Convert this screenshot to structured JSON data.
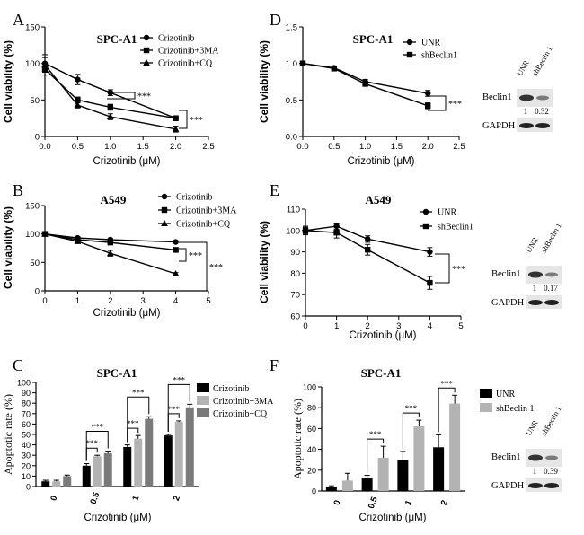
{
  "chart_data": [
    {
      "panel": "A",
      "type": "line",
      "title": "SPC-A1",
      "xlabel": "Crizotinib (μM)",
      "ylabel": "Cell viability (%)",
      "xlim": [
        0,
        2.5
      ],
      "ylim": [
        0,
        150
      ],
      "xticks": [
        "0.0",
        "0.5",
        "1.0",
        "1.5",
        "2.0",
        "2.5"
      ],
      "yticks": [
        "0",
        "50",
        "100",
        "150"
      ],
      "series": [
        {
          "name": "Crizotinib",
          "marker": "circle",
          "x": [
            0,
            0.5,
            1,
            2
          ],
          "values": [
            100,
            78,
            60,
            25
          ],
          "err": [
            12,
            7,
            4,
            3
          ]
        },
        {
          "name": "Crizotinib+3MA",
          "marker": "square",
          "x": [
            0,
            0.5,
            1,
            2
          ],
          "values": [
            92,
            50,
            40,
            25
          ],
          "err": [
            8,
            4,
            4,
            3
          ]
        },
        {
          "name": "Crizotinib+CQ",
          "marker": "triangle",
          "x": [
            0,
            0.5,
            1,
            2
          ],
          "values": [
            98,
            43,
            27,
            10
          ],
          "err": [
            10,
            4,
            4,
            4
          ]
        }
      ],
      "sig": [
        "***",
        "***"
      ]
    },
    {
      "panel": "B",
      "type": "line",
      "title": "A549",
      "xlabel": "Crizotinib (μM)",
      "ylabel": "Cell viability (%)",
      "xlim": [
        0,
        5
      ],
      "ylim": [
        0,
        150
      ],
      "xticks": [
        "0",
        "1",
        "2",
        "3",
        "4",
        "5"
      ],
      "yticks": [
        "0",
        "50",
        "100",
        "150"
      ],
      "series": [
        {
          "name": "Crizotinib",
          "marker": "circle",
          "x": [
            0,
            1,
            2,
            4
          ],
          "values": [
            100,
            93,
            90,
            86
          ],
          "err": [
            2,
            2,
            2,
            2
          ]
        },
        {
          "name": "Crizotinib+3MA",
          "marker": "square",
          "x": [
            0,
            1,
            2,
            4
          ],
          "values": [
            100,
            90,
            85,
            72
          ],
          "err": [
            2,
            2,
            3,
            2
          ]
        },
        {
          "name": "Crizotinib+CQ",
          "marker": "triangle",
          "x": [
            0,
            1,
            2,
            4
          ],
          "values": [
            100,
            87,
            66,
            30
          ],
          "err": [
            2,
            3,
            5,
            2
          ]
        }
      ],
      "sig": [
        "***",
        "***"
      ]
    },
    {
      "panel": "C",
      "type": "bar",
      "title": "SPC-A1",
      "xlabel": "Crizotinib (μM)",
      "ylabel": "Apoptotic rate (%)",
      "ylim": [
        0,
        100
      ],
      "yticks": [
        "0",
        "10",
        "20",
        "30",
        "40",
        "50",
        "60",
        "70",
        "80",
        "90",
        "100"
      ],
      "categories": [
        "0",
        "0.5",
        "1",
        "2"
      ],
      "series": [
        {
          "name": "Crizotinib",
          "color": "#000000",
          "values": [
            5,
            20,
            38,
            49
          ],
          "err": [
            1,
            2,
            2,
            1
          ]
        },
        {
          "name": "Crizotinib+3MA",
          "color": "#b3b3b3",
          "values": [
            5,
            29,
            46,
            62
          ],
          "err": [
            1,
            1,
            3,
            1
          ]
        },
        {
          "name": "Crizotinib+CQ",
          "color": "#7a7a7a",
          "values": [
            10,
            32,
            65,
            76
          ],
          "err": [
            1,
            2,
            2,
            3
          ]
        }
      ],
      "sig": [
        "***",
        "***",
        "***",
        "***",
        "***",
        "***"
      ]
    },
    {
      "panel": "D",
      "type": "line",
      "title": "SPC-A1",
      "xlabel": "Crizotinib (μM)",
      "ylabel": "Cell viability (%)",
      "xlim": [
        0,
        2.5
      ],
      "ylim": [
        0,
        1.5
      ],
      "xticks": [
        "0.0",
        "0.5",
        "1.0",
        "1.5",
        "2.0",
        "2.5"
      ],
      "yticks": [
        "0.0",
        "0.5",
        "1.0",
        "1.5"
      ],
      "series": [
        {
          "name": "UNR",
          "marker": "circle",
          "x": [
            0,
            0.5,
            1,
            2
          ],
          "values": [
            1.0,
            0.94,
            0.75,
            0.59
          ],
          "err": [
            0.02,
            0.02,
            0.03,
            0.04
          ]
        },
        {
          "name": "shBeclin1",
          "marker": "square",
          "x": [
            0,
            0.5,
            1,
            2
          ],
          "values": [
            1.0,
            0.93,
            0.72,
            0.42
          ],
          "err": [
            0.02,
            0.02,
            0.03,
            0.04
          ]
        }
      ],
      "sig": [
        "***"
      ]
    },
    {
      "panel": "E",
      "type": "line",
      "title": "A549",
      "xlabel": "Crizotinib (μM)",
      "ylabel": "Cell viability (%)",
      "xlim": [
        0,
        5
      ],
      "ylim": [
        60,
        110
      ],
      "xticks": [
        "0",
        "1",
        "2",
        "3",
        "4",
        "5"
      ],
      "yticks": [
        "60",
        "70",
        "80",
        "90",
        "100",
        "110"
      ],
      "series": [
        {
          "name": "UNR",
          "marker": "circle",
          "x": [
            0,
            1,
            2,
            4
          ],
          "values": [
            100,
            102,
            96,
            90
          ],
          "err": [
            1.5,
            1.5,
            1.5,
            2
          ]
        },
        {
          "name": "shBeclin1",
          "marker": "square",
          "x": [
            0,
            1,
            2,
            4
          ],
          "values": [
            100,
            99,
            91,
            75.5
          ],
          "err": [
            2,
            2.5,
            2.5,
            3
          ]
        }
      ],
      "sig": [
        "***"
      ]
    },
    {
      "panel": "F",
      "type": "bar",
      "title": "SPC-A1",
      "xlabel": "Crizotinib (μM)",
      "ylabel": "Apoptotic rate (%)",
      "ylim": [
        0,
        100
      ],
      "yticks": [
        "0",
        "20",
        "40",
        "60",
        "80",
        "100"
      ],
      "categories": [
        "0",
        "0.5",
        "1",
        "2"
      ],
      "series": [
        {
          "name": "UNR",
          "color": "#000000",
          "values": [
            4,
            12,
            30,
            42
          ],
          "err": [
            1,
            3,
            8,
            12
          ]
        },
        {
          "name": "shBeclin 1",
          "color": "#b3b3b3",
          "values": [
            10,
            32,
            62,
            84
          ],
          "err": [
            7,
            11,
            6,
            8
          ]
        }
      ],
      "sig": [
        "***",
        "***",
        "***"
      ]
    }
  ],
  "panel_letters": [
    "A",
    "B",
    "C",
    "D",
    "E",
    "F"
  ],
  "blots": [
    {
      "cols": [
        "UNR",
        "shBeclin 1"
      ],
      "row1": "Beclin1",
      "row2": "GAPDH",
      "v1": "1",
      "v2": "0.32"
    },
    {
      "cols": [
        "UNR",
        "shBeclin 1"
      ],
      "row1": "Beclin1",
      "row2": "GAPDH",
      "v1": "1",
      "v2": "0.17"
    },
    {
      "cols": [
        "UNR",
        "shBeclin 1"
      ],
      "row1": "Beclin1",
      "row2": "GAPDH",
      "v1": "1",
      "v2": "0.39"
    }
  ]
}
